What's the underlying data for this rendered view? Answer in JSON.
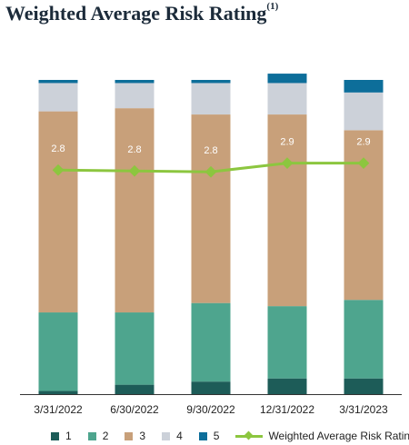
{
  "title": "Weighted Average Risk Rating",
  "title_footnote": "(1)",
  "chart_data": {
    "type": "bar",
    "stacked": true,
    "categories": [
      "3/31/2022",
      "6/30/2022",
      "9/30/2022",
      "12/31/2022",
      "3/31/2023"
    ],
    "ylim": [
      0,
      100
    ],
    "series": [
      {
        "name": "1",
        "color": "#1d5c58",
        "values": [
          1,
          3,
          4,
          5,
          5
        ]
      },
      {
        "name": "2",
        "color": "#4ea58e",
        "values": [
          25,
          23,
          25,
          23,
          25
        ]
      },
      {
        "name": "3",
        "color": "#c8a07a",
        "values": [
          64,
          65,
          60,
          61,
          54
        ]
      },
      {
        "name": "4",
        "color": "#ccd1d9",
        "values": [
          9,
          8,
          10,
          10,
          12
        ]
      },
      {
        "name": "5",
        "color": "#0d6e9a",
        "values": [
          1,
          1,
          1,
          3,
          4
        ]
      }
    ],
    "line": {
      "name": "Weighted Average Risk Rating",
      "color": "#8cc63f",
      "values": [
        2.8,
        2.8,
        2.8,
        2.9,
        2.9
      ],
      "labels": [
        "2.8",
        "2.8",
        "2.8",
        "2.9",
        "2.9"
      ]
    },
    "legend_position": "bottom",
    "grid": false
  }
}
